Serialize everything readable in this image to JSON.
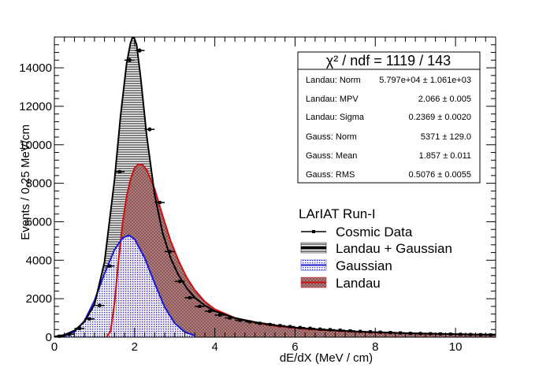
{
  "chart_data": {
    "type": "line",
    "xlabel": "dE/dX (MeV / cm)",
    "ylabel": "Events / 0.25 MeV/cm",
    "xlim": [
      0,
      11
    ],
    "ylim": [
      0,
      15600
    ],
    "xticks": [
      0,
      2,
      4,
      6,
      8,
      10
    ],
    "yticks": [
      0,
      2000,
      4000,
      6000,
      8000,
      10000,
      12000,
      14000
    ],
    "grid": false,
    "stats": {
      "chi2_text": "χ² / ndf =  1119 / 143",
      "rows": [
        {
          "label": "Landau: Norm",
          "value": "5.797e+04 ± 1.061e+03"
        },
        {
          "label": "Landau: MPV",
          "value": "2.066 ± 0.005"
        },
        {
          "label": "Landau: Sigma",
          "value": "0.2369 ± 0.0020"
        },
        {
          "label": "Gauss: Norm",
          "value": "5371 ± 129.0"
        },
        {
          "label": "Gauss: Mean",
          "value": "1.857 ± 0.011"
        },
        {
          "label": "Gauss: RMS",
          "value": "0.5076 ± 0.0055"
        }
      ]
    },
    "legend": {
      "title": "LArIAT Run-I",
      "placement": "middle-right",
      "entries": [
        "Cosmic Data",
        "Landau + Gaussian",
        "Gaussian",
        "Landau"
      ]
    },
    "series": [
      {
        "name": "Cosmic Data",
        "x": [
          0.125,
          0.375,
          0.625,
          0.875,
          1.125,
          1.375,
          1.625,
          1.875,
          2.125,
          2.375,
          2.625,
          2.875,
          3.125,
          3.375,
          3.625,
          3.875,
          4.125,
          4.375,
          4.625,
          4.875,
          5.125,
          5.375,
          5.625,
          5.875,
          6.125,
          6.375,
          6.625,
          6.875,
          7.125,
          7.375,
          7.625,
          7.875,
          8.125,
          8.375,
          8.625,
          8.875,
          9.125,
          9.375,
          9.625,
          9.875,
          10.125,
          10.375,
          10.625,
          10.875
        ],
        "y": [
          50,
          150,
          450,
          950,
          1650,
          3700,
          8600,
          14400,
          14900,
          10800,
          7000,
          4450,
          2900,
          2050,
          1600,
          1350,
          1150,
          1000,
          880,
          800,
          720,
          660,
          600,
          550,
          500,
          460,
          420,
          390,
          360,
          330,
          300,
          280,
          260,
          240,
          220,
          200,
          190,
          180,
          170,
          160,
          150,
          140,
          130,
          120
        ]
      },
      {
        "name": "Landau + Gaussian",
        "x": [
          0.0,
          0.25,
          0.5,
          0.75,
          1.0,
          1.25,
          1.5,
          1.65,
          1.8,
          1.9,
          1.95,
          2.0,
          2.05,
          2.15,
          2.3,
          2.5,
          2.7,
          2.9,
          3.1,
          3.3,
          3.5,
          3.75,
          4.0,
          4.5,
          5.0,
          5.5,
          6.0,
          6.5,
          7.0,
          7.5,
          8.0,
          8.5,
          9.0,
          9.5,
          10.0,
          10.5,
          11.0
        ],
        "y": [
          30,
          120,
          350,
          800,
          1700,
          3900,
          8200,
          11500,
          14200,
          15300,
          15600,
          15500,
          15200,
          13500,
          10500,
          7400,
          5400,
          4100,
          3200,
          2550,
          2050,
          1650,
          1350,
          1000,
          780,
          620,
          500,
          420,
          350,
          300,
          260,
          230,
          200,
          180,
          160,
          140,
          130
        ]
      },
      {
        "name": "Gaussian",
        "x": [
          0.0,
          0.25,
          0.5,
          0.75,
          1.0,
          1.25,
          1.5,
          1.7,
          1.857,
          2.0,
          2.25,
          2.5,
          2.75,
          3.0,
          3.25,
          3.5
        ],
        "y": [
          5,
          60,
          280,
          850,
          1900,
          3300,
          4550,
          5150,
          5300,
          5100,
          4130,
          2800,
          1560,
          730,
          270,
          80
        ]
      },
      {
        "name": "Landau",
        "x": [
          1.3,
          1.4,
          1.5,
          1.6,
          1.7,
          1.8,
          1.9,
          2.0,
          2.1,
          2.2,
          2.3,
          2.5,
          2.7,
          2.9,
          3.1,
          3.3,
          3.5,
          3.75,
          4.0,
          4.5,
          5.0,
          5.5,
          6.0,
          6.5,
          7.0,
          7.5,
          8.0,
          9.0,
          10.0,
          11.0
        ],
        "y": [
          20,
          300,
          1800,
          4000,
          5900,
          7300,
          8200,
          8800,
          9000,
          8950,
          8700,
          7700,
          6300,
          5000,
          3950,
          3100,
          2450,
          1850,
          1450,
          1000,
          750,
          580,
          470,
          390,
          330,
          280,
          240,
          190,
          155,
          130
        ]
      }
    ],
    "colors": {
      "cosmic_data": "#000000",
      "landau_gaussian": "#000000",
      "gaussian": "#1a1ad6",
      "landau": "#cc1111",
      "landau_fill": "#b08585"
    }
  }
}
